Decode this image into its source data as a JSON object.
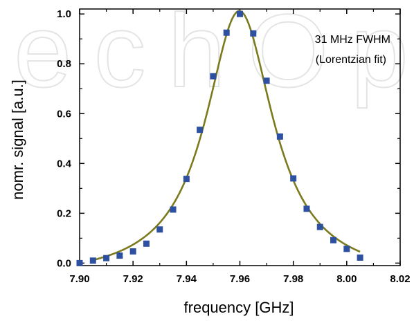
{
  "watermark": "echOp",
  "chart_data": {
    "type": "scatter",
    "title": "",
    "xlabel": "frequency [GHz]",
    "ylabel": "nomr. signal [a.u.]",
    "xlim": [
      7.9,
      8.02
    ],
    "ylim": [
      -0.01,
      1.02
    ],
    "xticks": [
      7.9,
      7.92,
      7.94,
      7.96,
      7.98,
      8.0,
      8.02
    ],
    "xtick_labels": [
      "7.90",
      "7.92",
      "7.94",
      "7.96",
      "7.98",
      "8.00",
      "8.02"
    ],
    "yticks": [
      0.0,
      0.2,
      0.4,
      0.6,
      0.8,
      1.0
    ],
    "ytick_labels": [
      "0.0",
      "0.2",
      "0.4",
      "0.6",
      "0.8",
      "1.0"
    ],
    "grid": false,
    "annotations": [
      "31 MHz FWHM",
      "(Lorentzian fit)"
    ],
    "series": [
      {
        "kind": "points",
        "marker": "square",
        "color": "#2e50a0",
        "x": [
          7.9,
          7.905,
          7.91,
          7.915,
          7.92,
          7.925,
          7.93,
          7.935,
          7.94,
          7.945,
          7.95,
          7.955,
          7.96,
          7.965,
          7.97,
          7.975,
          7.98,
          7.985,
          7.99,
          7.995,
          8.0,
          8.005
        ],
        "y": [
          0.0,
          0.01,
          0.02,
          0.03,
          0.047,
          0.078,
          0.135,
          0.215,
          0.338,
          0.535,
          0.75,
          0.925,
          1.0,
          0.922,
          0.732,
          0.508,
          0.34,
          0.218,
          0.145,
          0.092,
          0.057,
          0.022
        ]
      },
      {
        "kind": "fit",
        "model": "lorentzian",
        "color": "#7c7a1e",
        "center": 7.9598,
        "fwhm": 0.031,
        "amplitude": 1.08,
        "offset": -0.068,
        "x_range": [
          7.905,
          8.005
        ]
      }
    ]
  }
}
